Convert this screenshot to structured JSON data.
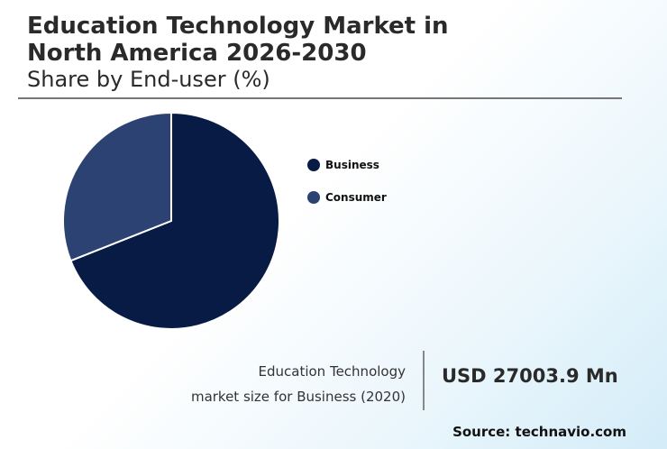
{
  "header": {
    "title_line1": "Education Technology Market in",
    "title_line2": "North America 2026-2030",
    "subtitle": "Share by End-user (%)"
  },
  "chart_data": {
    "type": "pie",
    "title": "Education Technology Market in North America 2026-2030",
    "subtitle": "Share by End-user (%)",
    "categories": [
      "Business",
      "Consumer"
    ],
    "values": [
      69,
      31
    ],
    "colors": [
      "#071b45",
      "#2c4272"
    ],
    "legend_position": "right"
  },
  "legend": {
    "items": [
      {
        "label": "Business",
        "color": "#071b45"
      },
      {
        "label": "Consumer",
        "color": "#2c4272"
      }
    ]
  },
  "metric": {
    "desc_line1": "Education Technology",
    "desc_line2": "market size for Business (2020)",
    "value": "USD 27003.9 Mn"
  },
  "footer": {
    "source": "Source: technavio.com"
  }
}
